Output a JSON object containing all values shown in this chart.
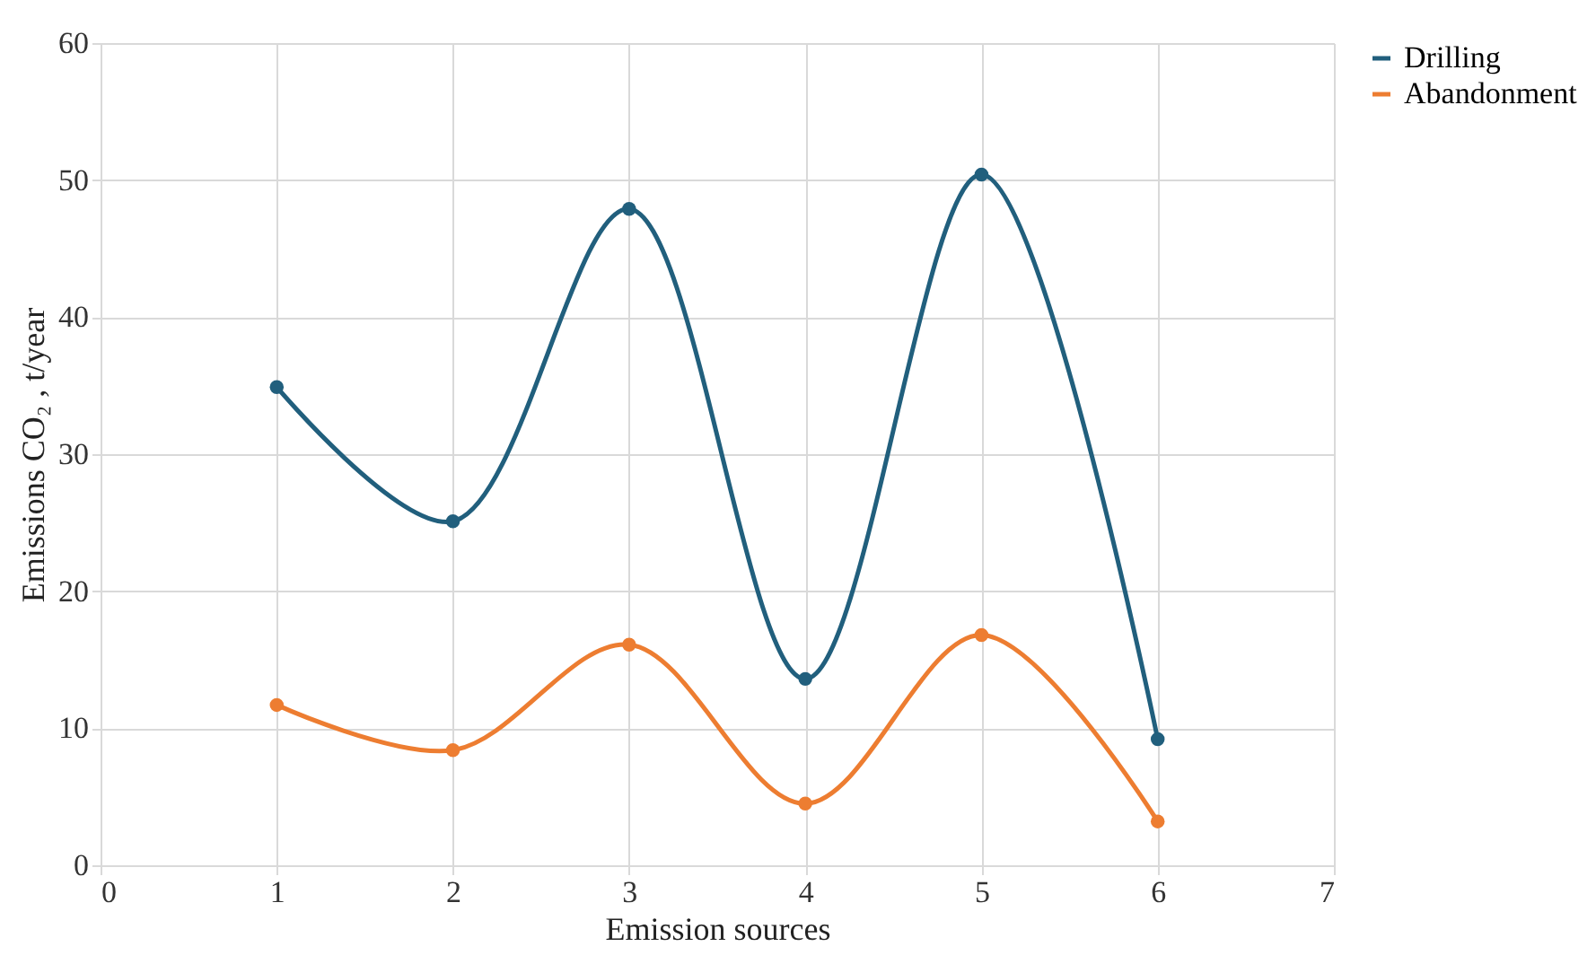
{
  "chart_data": {
    "type": "line",
    "xlabel": "Emission sources",
    "ylabel": "Emissions CO₂ , t/year",
    "x": [
      1,
      2,
      3,
      4,
      5,
      6
    ],
    "series": [
      {
        "name": "Drilling",
        "color": "#215f7d",
        "values": [
          34.9,
          25.1,
          47.9,
          13.6,
          50.4,
          9.2
        ]
      },
      {
        "name": "Abandonment",
        "color": "#ed7d31",
        "values": [
          11.7,
          8.4,
          16.1,
          4.5,
          16.8,
          3.2
        ]
      }
    ],
    "xlim": [
      0,
      7
    ],
    "xticks": [
      0,
      1,
      2,
      3,
      4,
      5,
      6,
      7
    ],
    "ylim": [
      0,
      60
    ],
    "yticks": [
      0,
      10,
      20,
      30,
      40,
      50,
      60
    ],
    "grid": true,
    "legend": "right",
    "marker": "circle",
    "line_style": "solid"
  }
}
